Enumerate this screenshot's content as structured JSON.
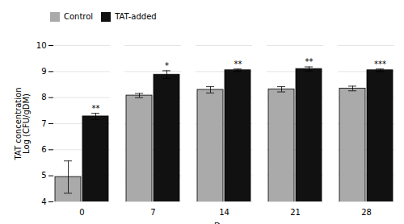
{
  "chart_data": {
    "type": "bar",
    "categories": [
      "0",
      "7",
      "14",
      "21",
      "28"
    ],
    "xlabel": "Days",
    "ylabel": "TAT concentration\nLog (CFU/gDM)",
    "series": [
      {
        "name": "Control",
        "color": "#aaaaaa",
        "values": [
          4.95,
          8.08,
          8.3,
          8.32,
          8.35
        ],
        "errors": [
          0.62,
          0.08,
          0.12,
          0.1,
          0.09
        ]
      },
      {
        "name": "TAT-added",
        "color": "#111111",
        "values": [
          7.28,
          8.88,
          9.05,
          9.1,
          9.05
        ],
        "errors": [
          0.12,
          0.15,
          0.05,
          0.08,
          0.05
        ],
        "significance": [
          "**",
          "*",
          "**",
          "**",
          "***"
        ]
      }
    ],
    "ylim": [
      4,
      10
    ],
    "yticks": [
      4,
      5,
      6,
      7,
      8,
      9,
      10
    ],
    "grid": true,
    "legend": "top"
  }
}
